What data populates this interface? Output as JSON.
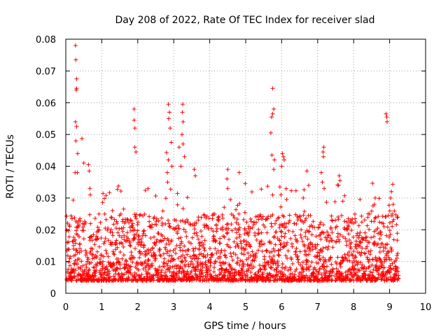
{
  "chart_data": {
    "type": "scatter",
    "title": "Day 208 of 2022, Rate Of TEC Index for receiver slad",
    "xlabel": "GPS time / hours",
    "ylabel": "ROTI / TECUs",
    "xlim": [
      0,
      10
    ],
    "ylim": [
      0,
      0.08
    ],
    "xticks": [
      "0",
      "1",
      "2",
      "3",
      "4",
      "5",
      "6",
      "7",
      "8",
      "9",
      "10"
    ],
    "yticks": [
      "0",
      "0.01",
      "0.02",
      "0.03",
      "0.04",
      "0.05",
      "0.06",
      "0.07",
      "0.08"
    ],
    "grid": true,
    "marker": "+",
    "color": "#ff0000",
    "series": [
      {
        "name": "ROTI",
        "peaks": [
          [
            0.27,
            0.078
          ],
          [
            0.28,
            0.0735
          ],
          [
            0.3,
            0.0675
          ],
          [
            0.29,
            0.064
          ],
          [
            0.3,
            0.0645
          ],
          [
            0.27,
            0.054
          ],
          [
            0.3,
            0.0525
          ],
          [
            0.28,
            0.048
          ],
          [
            0.45,
            0.0487
          ],
          [
            0.33,
            0.044
          ],
          [
            0.5,
            0.041
          ],
          [
            0.63,
            0.0405
          ],
          [
            0.65,
            0.0385
          ],
          [
            0.26,
            0.038
          ],
          [
            0.32,
            0.038
          ],
          [
            0.67,
            0.033
          ],
          [
            0.68,
            0.031
          ],
          [
            1.9,
            0.058
          ],
          [
            1.9,
            0.0545
          ],
          [
            1.92,
            0.052
          ],
          [
            1.92,
            0.046
          ],
          [
            1.95,
            0.0445
          ],
          [
            2.85,
            0.0595
          ],
          [
            2.88,
            0.057
          ],
          [
            2.86,
            0.055
          ],
          [
            2.9,
            0.052
          ],
          [
            2.93,
            0.0475
          ],
          [
            2.8,
            0.0443
          ],
          [
            2.85,
            0.042
          ],
          [
            2.95,
            0.04
          ],
          [
            2.82,
            0.038
          ],
          [
            2.83,
            0.035
          ],
          [
            3.25,
            0.0595
          ],
          [
            3.24,
            0.057
          ],
          [
            3.26,
            0.054
          ],
          [
            3.23,
            0.05
          ],
          [
            3.26,
            0.047
          ],
          [
            3.15,
            0.046
          ],
          [
            3.3,
            0.043
          ],
          [
            3.2,
            0.04
          ],
          [
            3.57,
            0.039
          ],
          [
            3.6,
            0.037
          ],
          [
            4.5,
            0.039
          ],
          [
            4.48,
            0.036
          ],
          [
            4.82,
            0.038
          ],
          [
            4.5,
            0.033
          ],
          [
            5.75,
            0.0645
          ],
          [
            5.78,
            0.058
          ],
          [
            5.75,
            0.0565
          ],
          [
            5.72,
            0.0555
          ],
          [
            5.7,
            0.0505
          ],
          [
            5.73,
            0.0435
          ],
          [
            5.8,
            0.042
          ],
          [
            5.78,
            0.039
          ],
          [
            6.02,
            0.044
          ],
          [
            6.05,
            0.043
          ],
          [
            6.07,
            0.042
          ],
          [
            6.0,
            0.04
          ],
          [
            5.95,
            0.0335
          ],
          [
            5.98,
            0.031
          ],
          [
            6.7,
            0.0385
          ],
          [
            6.75,
            0.034
          ],
          [
            6.6,
            0.03
          ],
          [
            7.17,
            0.046
          ],
          [
            7.15,
            0.0445
          ],
          [
            7.16,
            0.043
          ],
          [
            7.1,
            0.038
          ],
          [
            7.13,
            0.035
          ],
          [
            7.18,
            0.033
          ],
          [
            7.6,
            0.037
          ],
          [
            7.62,
            0.0355
          ],
          [
            7.58,
            0.034
          ],
          [
            7.7,
            0.029
          ],
          [
            8.6,
            0.03
          ],
          [
            8.58,
            0.028
          ],
          [
            8.9,
            0.0565
          ],
          [
            8.92,
            0.0555
          ],
          [
            8.93,
            0.054
          ],
          [
            9.05,
            0.032
          ],
          [
            9.03,
            0.03
          ],
          [
            9.1,
            0.028
          ]
        ],
        "outages": [
          [
            3.98,
            4.0
          ],
          [
            7.43,
            7.48
          ]
        ],
        "baseline": {
          "typical_range": [
            0.004,
            0.025
          ],
          "end_hours": 9.25
        }
      }
    ]
  }
}
